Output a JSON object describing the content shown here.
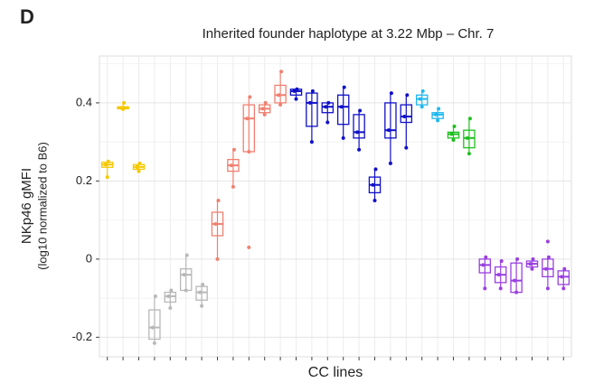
{
  "chart_data": {
    "type": "box",
    "panel": "D",
    "title": "Inherited founder haplotype at 3.22 Mbp – Chr. 7",
    "y_label": "NKp46 gMFI",
    "y_sublabel": "(log10 normalized to B6)",
    "x_label": "CC lines",
    "ylim": [
      -0.25,
      0.52
    ],
    "yticks": [
      -0.2,
      0,
      0.2,
      0.4
    ],
    "grid": true,
    "categories": [
      null,
      null,
      null,
      null,
      null,
      null,
      null,
      null,
      null,
      null,
      null,
      null,
      null,
      null,
      null,
      null,
      null,
      null,
      null,
      null,
      null,
      null,
      null,
      null,
      null,
      null,
      null,
      null,
      null,
      null
    ],
    "boxes": [
      {
        "color": "#f5c800",
        "min": 0.21,
        "q1": 0.235,
        "median": 0.242,
        "q3": 0.248,
        "max": 0.25
      },
      {
        "color": "#f5c800",
        "min": 0.384,
        "q1": 0.385,
        "median": 0.387,
        "q3": 0.39,
        "max": 0.4
      },
      {
        "color": "#f5c800",
        "min": 0.225,
        "q1": 0.23,
        "median": 0.236,
        "q3": 0.242,
        "max": 0.245
      },
      {
        "color": "#b8b8b8",
        "min": -0.215,
        "q1": -0.205,
        "median": -0.175,
        "q3": -0.13,
        "max": -0.095
      },
      {
        "color": "#b8b8b8",
        "min": -0.125,
        "q1": -0.11,
        "median": -0.095,
        "q3": -0.085,
        "max": -0.08
      },
      {
        "color": "#b8b8b8",
        "min": -0.08,
        "q1": -0.08,
        "median": -0.04,
        "q3": -0.025,
        "max": 0.01
      },
      {
        "color": "#b8b8b8",
        "min": -0.12,
        "q1": -0.105,
        "median": -0.085,
        "q3": -0.07,
        "max": -0.065
      },
      {
        "color": "#f08070",
        "min": 0,
        "q1": 0.06,
        "median": 0.09,
        "q3": 0.12,
        "max": 0.15
      },
      {
        "color": "#f08070",
        "min": 0.185,
        "q1": 0.225,
        "median": 0.24,
        "q3": 0.255,
        "max": 0.28
      },
      {
        "color": "#f08070",
        "min": 0.275,
        "q1": 0.275,
        "median": 0.36,
        "q3": 0.395,
        "max": 0.415,
        "outliers": [
          0.03
        ]
      },
      {
        "color": "#f08070",
        "min": 0.37,
        "q1": 0.375,
        "median": 0.385,
        "q3": 0.395,
        "max": 0.4
      },
      {
        "color": "#f08070",
        "min": 0.395,
        "q1": 0.4,
        "median": 0.42,
        "q3": 0.445,
        "max": 0.48
      },
      {
        "color": "#1010c8",
        "min": 0.41,
        "q1": 0.42,
        "median": 0.43,
        "q3": 0.435,
        "max": 0.435
      },
      {
        "color": "#1010c8",
        "min": 0.3,
        "q1": 0.34,
        "median": 0.4,
        "q3": 0.425,
        "max": 0.43
      },
      {
        "color": "#1010c8",
        "min": 0.35,
        "q1": 0.375,
        "median": 0.39,
        "q3": 0.4,
        "max": 0.4
      },
      {
        "color": "#1010c8",
        "min": 0.31,
        "q1": 0.345,
        "median": 0.39,
        "q3": 0.42,
        "max": 0.44
      },
      {
        "color": "#1010c8",
        "min": 0.28,
        "q1": 0.31,
        "median": 0.325,
        "q3": 0.37,
        "max": 0.38
      },
      {
        "color": "#1010c8",
        "min": 0.15,
        "q1": 0.17,
        "median": 0.19,
        "q3": 0.21,
        "max": 0.23
      },
      {
        "color": "#1010c8",
        "min": 0.245,
        "q1": 0.31,
        "median": 0.33,
        "q3": 0.4,
        "max": 0.425
      },
      {
        "color": "#1010c8",
        "min": 0.285,
        "q1": 0.35,
        "median": 0.365,
        "q3": 0.395,
        "max": 0.42
      },
      {
        "color": "#20b8f0",
        "min": 0.39,
        "q1": 0.395,
        "median": 0.41,
        "q3": 0.42,
        "max": 0.43
      },
      {
        "color": "#20b8f0",
        "min": 0.355,
        "q1": 0.36,
        "median": 0.37,
        "q3": 0.375,
        "max": 0.385
      },
      {
        "color": "#20c020",
        "min": 0.305,
        "q1": 0.31,
        "median": 0.32,
        "q3": 0.325,
        "max": 0.34
      },
      {
        "color": "#20c020",
        "min": 0.27,
        "q1": 0.285,
        "median": 0.31,
        "q3": 0.33,
        "max": 0.36
      },
      {
        "color": "#9a40e0",
        "min": -0.075,
        "q1": -0.035,
        "median": -0.015,
        "q3": 0,
        "max": 0.005
      },
      {
        "color": "#9a40e0",
        "min": -0.075,
        "q1": -0.06,
        "median": -0.04,
        "q3": -0.02,
        "max": -0.005
      },
      {
        "color": "#9a40e0",
        "min": -0.085,
        "q1": -0.085,
        "median": -0.055,
        "q3": -0.01,
        "max": 0
      },
      {
        "color": "#9a40e0",
        "min": -0.025,
        "q1": -0.02,
        "median": -0.012,
        "q3": -0.005,
        "max": 0
      },
      {
        "color": "#9a40e0",
        "min": -0.075,
        "q1": -0.045,
        "median": -0.025,
        "q3": 0,
        "max": 0.005,
        "outliers": [
          0.045
        ]
      },
      {
        "color": "#9a40e0",
        "min": -0.075,
        "q1": -0.065,
        "median": -0.045,
        "q3": -0.03,
        "max": -0.025
      }
    ]
  }
}
